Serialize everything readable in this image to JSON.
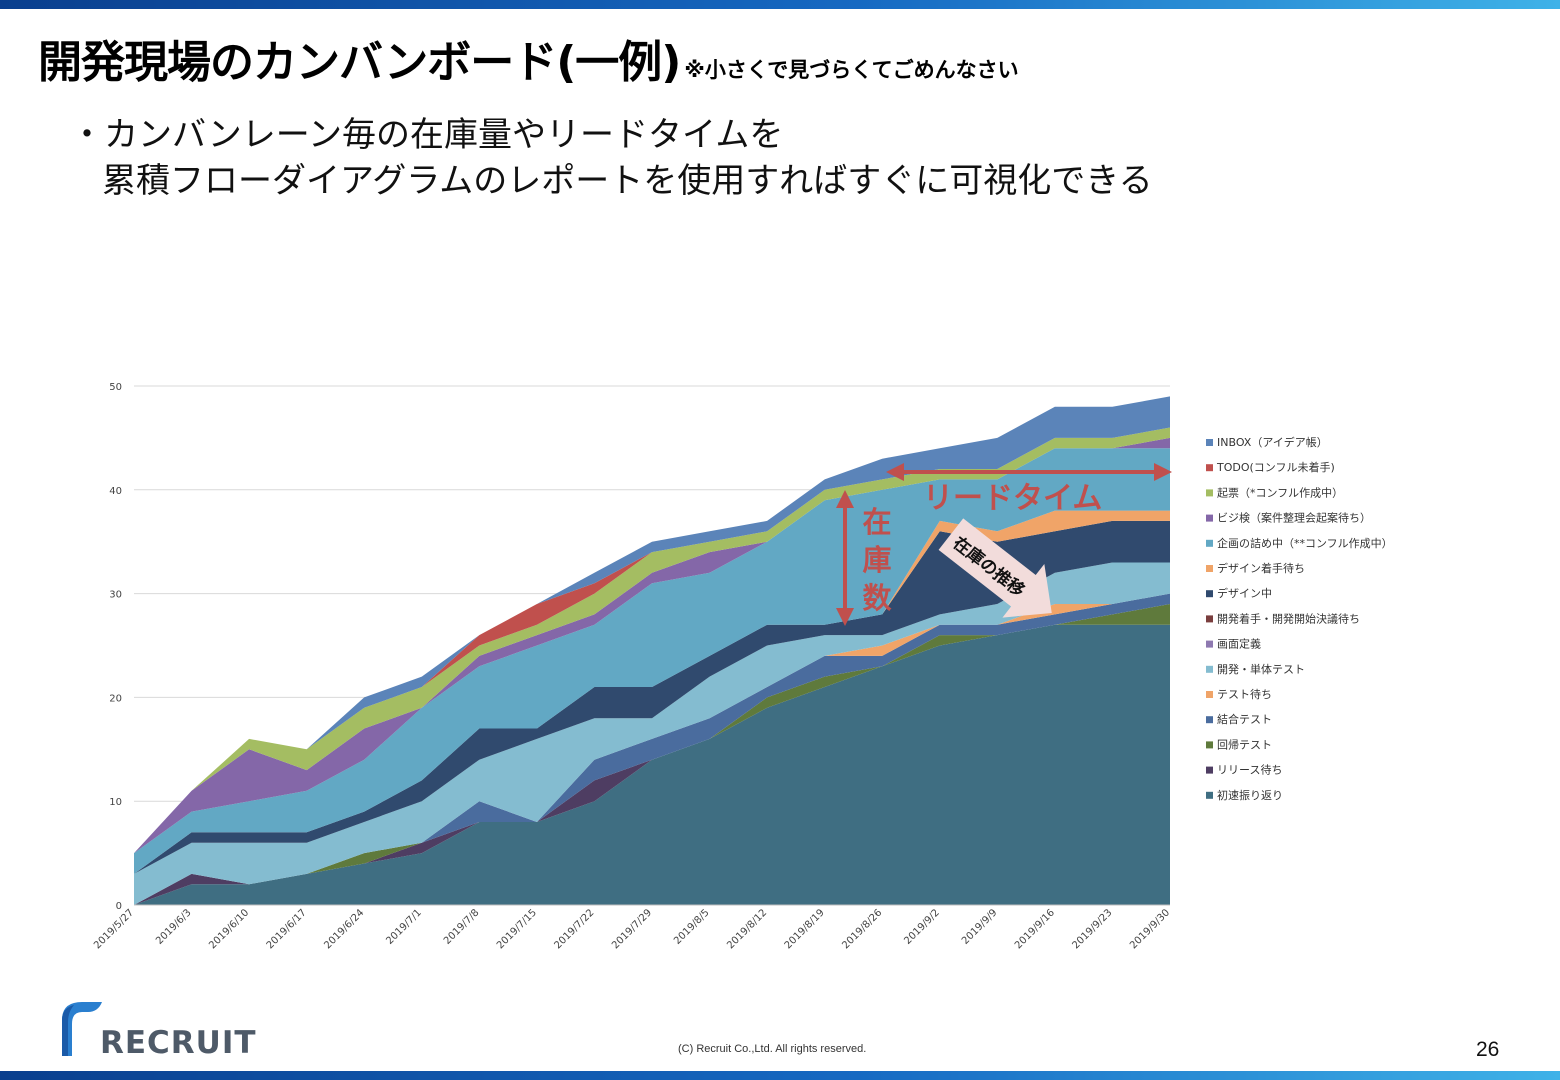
{
  "slide": {
    "title": "開発現場のカンバンボード(一例)",
    "title_note": "※小さくで見づらくてごめんなさい",
    "bullet_line1": "・カンバンレーン毎の在庫量やリードタイムを",
    "bullet_line2": "累積フローダイアグラムのレポートを使用すればすぐに可視化できる",
    "logo_text": "RECRUIT",
    "copyright": "(C) Recruit Co.,Ltd. All rights reserved.",
    "page_number": "26"
  },
  "annotations": {
    "lead_time": "リードタイム",
    "inventory": "在庫数",
    "inventory_trend": "在庫の推移",
    "color": "#c0504d"
  },
  "chart_data": {
    "type": "area",
    "stacked": true,
    "ylim": [
      0,
      50
    ],
    "yticks": [
      0,
      10,
      20,
      30,
      40,
      50
    ],
    "grid": true,
    "legend_position": "right",
    "x_tick_labels": [
      "2019/5/27",
      "2019/6/3",
      "2019/6/10",
      "2019/6/17",
      "2019/6/24",
      "2019/7/1",
      "2019/7/8",
      "2019/7/15",
      "2019/7/22",
      "2019/7/29",
      "2019/8/5",
      "2019/8/12",
      "2019/8/19",
      "2019/8/26",
      "2019/9/2",
      "2019/9/9",
      "2019/9/16",
      "2019/9/23",
      "2019/9/30"
    ],
    "x": [
      "2019/5/27",
      "2019/6/3",
      "2019/6/10",
      "2019/6/17",
      "2019/6/24",
      "2019/7/1",
      "2019/7/8",
      "2019/7/15",
      "2019/7/22",
      "2019/7/29",
      "2019/8/5",
      "2019/8/12",
      "2019/8/19",
      "2019/8/26",
      "2019/9/2",
      "2019/9/9",
      "2019/9/16",
      "2019/9/23",
      "2019/9/30"
    ],
    "series": [
      {
        "name": "初速振り返り",
        "color": "#3f6e82",
        "values": [
          0,
          2,
          2,
          3,
          4,
          5,
          8,
          8,
          10,
          14,
          16,
          19,
          21,
          23,
          25,
          26,
          27,
          27,
          27
        ]
      },
      {
        "name": "リリース待ち",
        "color": "#4e3d62",
        "values": [
          0,
          1,
          0,
          0,
          0,
          1,
          0,
          0,
          2,
          0,
          0,
          0,
          0,
          0,
          0,
          0,
          0,
          0,
          0
        ]
      },
      {
        "name": "回帰テスト",
        "color": "#5f7a3c",
        "values": [
          0,
          0,
          0,
          0,
          1,
          0,
          0,
          0,
          0,
          0,
          0,
          1,
          1,
          0,
          1,
          0,
          0,
          1,
          2
        ]
      },
      {
        "name": "結合テスト",
        "color": "#4a6c9e",
        "values": [
          0,
          0,
          0,
          0,
          0,
          0,
          2,
          0,
          2,
          2,
          2,
          1,
          2,
          1,
          1,
          1,
          1,
          1,
          1
        ]
      },
      {
        "name": "テスト待ち",
        "color": "#f0a468",
        "values": [
          0,
          0,
          0,
          0,
          0,
          0,
          0,
          0,
          0,
          0,
          0,
          0,
          0,
          1,
          0,
          0,
          1,
          0,
          0
        ]
      },
      {
        "name": "開発・単体テスト",
        "color": "#84bcd0",
        "values": [
          3,
          3,
          4,
          3,
          3,
          4,
          4,
          8,
          4,
          2,
          4,
          4,
          2,
          1,
          1,
          2,
          3,
          4,
          3
        ]
      },
      {
        "name": "画面定義",
        "color": "#8e79b0",
        "values": [
          0,
          0,
          0,
          0,
          0,
          0,
          0,
          0,
          0,
          0,
          0,
          0,
          0,
          0,
          0,
          0,
          0,
          0,
          0
        ]
      },
      {
        "name": "開発着手・開発開始決議待ち",
        "color": "#7a3e3e",
        "values": [
          0,
          0,
          0,
          0,
          0,
          0,
          0,
          0,
          0,
          0,
          0,
          0,
          0,
          0,
          0,
          0,
          0,
          0,
          0
        ]
      },
      {
        "name": "デザイン中",
        "color": "#304a6e",
        "values": [
          0,
          1,
          1,
          1,
          1,
          2,
          3,
          1,
          3,
          3,
          2,
          2,
          1,
          2,
          8,
          6,
          4,
          4,
          4
        ]
      },
      {
        "name": "デザイン着手待ち",
        "color": "#f0a468",
        "values": [
          0,
          0,
          0,
          0,
          0,
          0,
          0,
          0,
          0,
          0,
          0,
          0,
          0,
          0,
          1,
          1,
          2,
          1,
          1
        ]
      },
      {
        "name": "企画の詰め中（**コンフル作成中）",
        "color": "#62a8c4",
        "values": [
          2,
          2,
          3,
          4,
          5,
          7,
          6,
          8,
          6,
          10,
          8,
          8,
          12,
          12,
          4,
          5,
          6,
          6,
          6
        ]
      },
      {
        "name": "ビジ検（案件整理会起案待ち）",
        "color": "#8467a8",
        "values": [
          0,
          2,
          5,
          2,
          3,
          0,
          1,
          1,
          1,
          1,
          2,
          0,
          0,
          0,
          0,
          0,
          0,
          0,
          1
        ]
      },
      {
        "name": "起票（*コンフル作成中）",
        "color": "#a4bd62",
        "values": [
          0,
          0,
          1,
          2,
          2,
          2,
          1,
          1,
          2,
          2,
          1,
          1,
          1,
          1,
          1,
          1,
          1,
          1,
          1
        ]
      },
      {
        "name": "TODO(コンフル未着手)",
        "color": "#c0504d",
        "values": [
          0,
          0,
          0,
          0,
          0,
          0,
          1,
          2,
          1,
          0,
          0,
          0,
          0,
          0,
          0,
          0,
          0,
          0,
          0
        ]
      },
      {
        "name": "INBOX（アイデア帳）",
        "color": "#5b84b9",
        "values": [
          0,
          0,
          0,
          0,
          1,
          1,
          0,
          0,
          1,
          1,
          1,
          1,
          1,
          2,
          2,
          3,
          3,
          3,
          3
        ]
      }
    ]
  }
}
